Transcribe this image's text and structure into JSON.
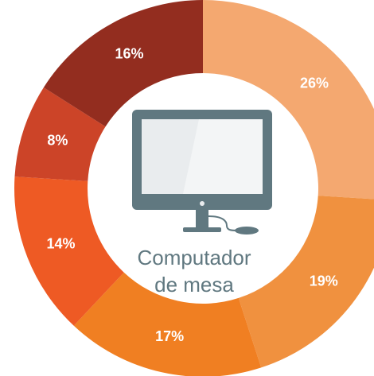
{
  "chart_data": {
    "type": "donut",
    "categories": [
      null,
      null,
      null,
      null,
      null,
      null
    ],
    "values": [
      26,
      19,
      17,
      14,
      8,
      16
    ],
    "value_labels": [
      "26%",
      "19%",
      "17%",
      "14%",
      "8%",
      "16%"
    ],
    "colors": [
      "#f4a870",
      "#f0913f",
      "#f07f22",
      "#ee5a24",
      "#cc4428",
      "#932d1f"
    ],
    "center_label": [
      "Computador",
      "de mesa"
    ]
  }
}
